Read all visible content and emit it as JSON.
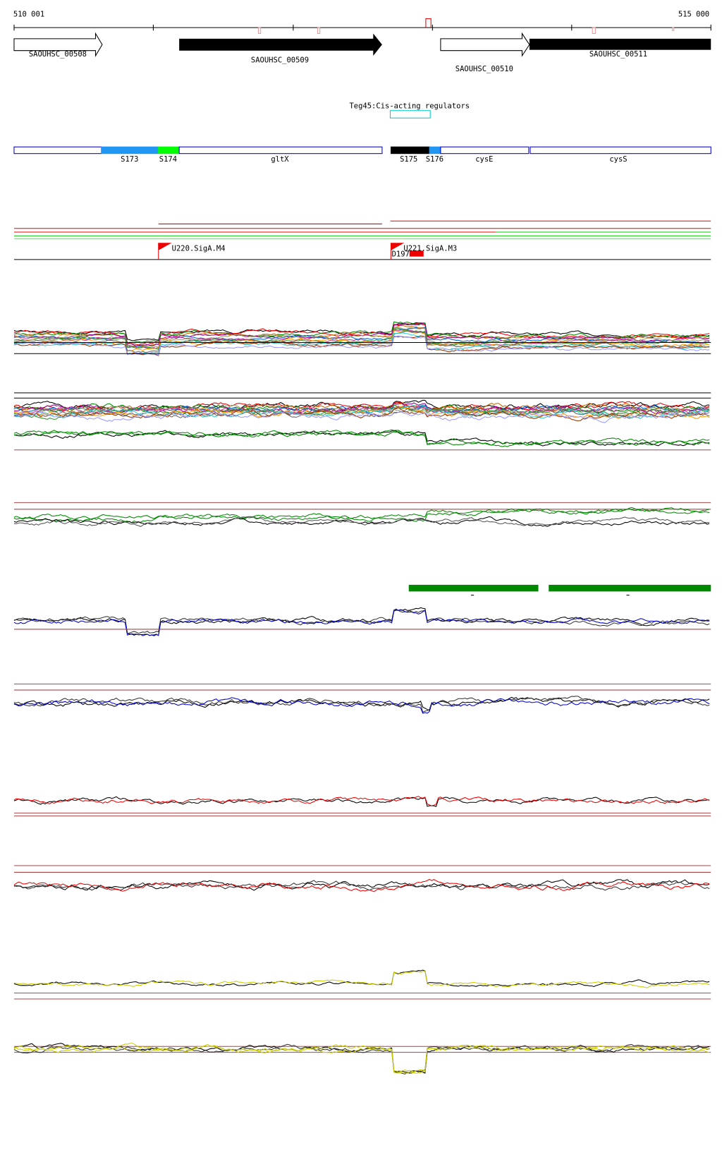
{
  "header": {
    "start": "510 001",
    "end": "515 000"
  },
  "genes": [
    {
      "label": "SAOUHSC_00508"
    },
    {
      "label": "SAOUHSC_00509"
    },
    {
      "label": "SAOUHSC_00510"
    },
    {
      "label": "SAOUHSC_00511"
    }
  ],
  "regulator": {
    "label": "Teg45:Cis-acting regulators"
  },
  "segments": [
    {
      "label": "S173"
    },
    {
      "label": "S174"
    },
    {
      "label": "gltX"
    },
    {
      "label": "S175"
    },
    {
      "label": "S176"
    },
    {
      "label": "cysE"
    },
    {
      "label": "cysS"
    }
  ],
  "promoters": [
    {
      "label": "U220.SigA.M4"
    },
    {
      "label": "U221.SigA.M3"
    },
    {
      "label": "D197"
    }
  ]
}
